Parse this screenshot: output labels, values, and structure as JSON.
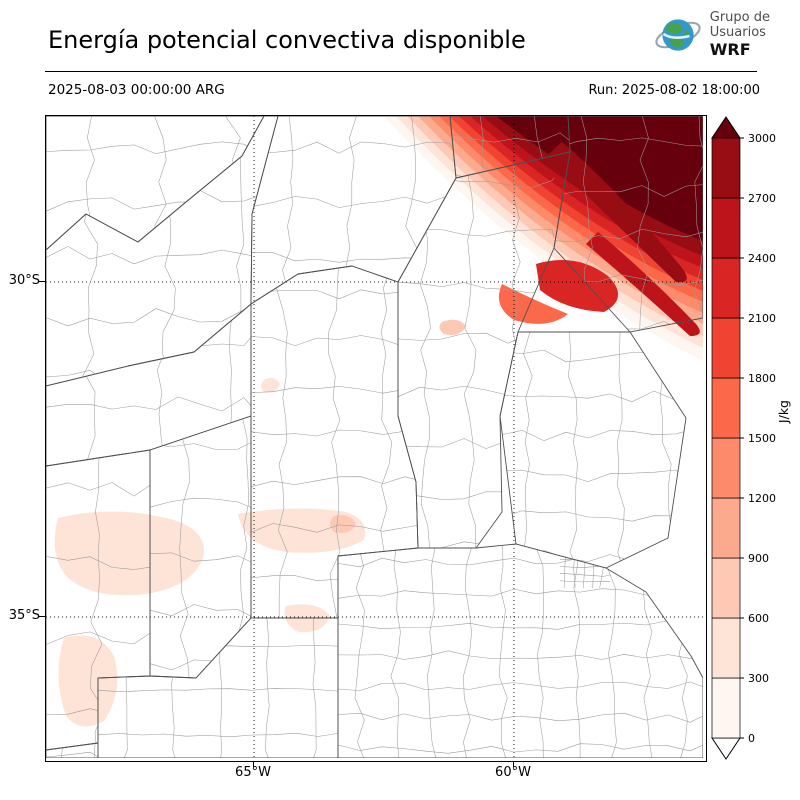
{
  "header": {
    "title": "Energía potencial convectiva disponible",
    "valid_time": "2025-08-03 00:00:00 ARG",
    "run_label": "Run: 2025-08-02 18:00:00",
    "logo": {
      "line1": "Grupo de",
      "line2": "Usuarios",
      "line3": "WRF"
    }
  },
  "map": {
    "lat_ticks": [
      "30°S",
      "35°S"
    ],
    "lon_ticks": [
      "65°W",
      "60°W"
    ]
  },
  "colorbar": {
    "unit": "J/kg",
    "ticks": [
      "0",
      "300",
      "600",
      "900",
      "1200",
      "1500",
      "1800",
      "2100",
      "2400",
      "2700",
      "3000"
    ],
    "segment_colors": [
      "#fff6f1",
      "#fee3d7",
      "#fdc9b4",
      "#fcaa8e",
      "#fc8a6b",
      "#fb694a",
      "#f14331",
      "#d92523",
      "#bc141a",
      "#980c13"
    ],
    "over_color": "#67000d",
    "under_color": "#ffffff"
  },
  "chart_data": {
    "type": "heatmap",
    "title": "Energía potencial convectiva disponible",
    "unit": "J/kg",
    "valid_time": "2025-08-03 00:00:00 ARG",
    "model_run": "2025-08-02 18:00:00",
    "scale_ticks": [
      0,
      300,
      600,
      900,
      1200,
      1500,
      1800,
      2100,
      2400,
      2700,
      3000
    ],
    "lat_gridlines": [
      "30°S",
      "35°S"
    ],
    "lon_gridlines": [
      "65°W",
      "60°W"
    ],
    "legend_position": "right colorbar with over/under arrows",
    "regions": [
      {
        "location": "northeast corner of domain (diagonal band)",
        "cape_jkg": "1500 to above 3000, darkest core above 3000"
      },
      {
        "location": "scattered patches west and south-center of domain",
        "cape_jkg": "roughly 0 to 600"
      },
      {
        "location": "remainder of domain",
        "cape_jkg": "near 0 (white)"
      }
    ]
  }
}
